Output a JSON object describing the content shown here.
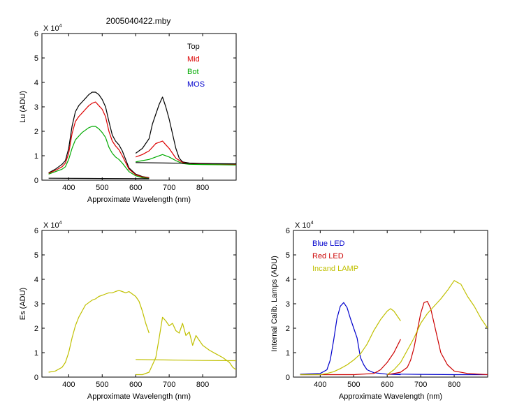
{
  "figure_title": "2005040422.mby",
  "colors": {
    "top": "#000000",
    "mid": "#dd0000",
    "bot": "#00aa00",
    "mos": "#0000cc",
    "blue_led": "#0000cc",
    "red_led": "#cc0000",
    "lamp": "#c0c000"
  },
  "chart_data": [
    {
      "type": "line",
      "panel": "lu",
      "title": "",
      "xlabel": "Approximate Wavelength (nm)",
      "ylabel": "Lu (ADU)",
      "y_multiplier": "X 10",
      "y_exponent": "4",
      "xlim": [
        320,
        900
      ],
      "ylim": [
        0,
        6
      ],
      "xticks": [
        400,
        500,
        600,
        700,
        800
      ],
      "xtick_labels": [
        "400",
        "500",
        "600",
        "700",
        "800"
      ],
      "yticks": [
        0,
        1,
        2,
        3,
        4,
        5,
        6
      ],
      "ytick_labels": [
        "0",
        "1",
        "2",
        "3",
        "4",
        "5",
        "6"
      ],
      "legend_position": "top-right",
      "series": [
        {
          "name": "Top",
          "color": "#000000",
          "segments": [
            {
              "x": [
                340,
                360,
                380,
                390,
                400,
                410,
                420,
                430,
                440,
                450,
                460,
                470,
                480,
                490,
                500,
                510,
                520,
                530,
                540,
                550,
                560,
                580,
                600,
                620,
                640
              ],
              "y": [
                0.3,
                0.45,
                0.65,
                0.8,
                1.3,
                2.2,
                2.8,
                3.05,
                3.2,
                3.35,
                3.5,
                3.6,
                3.6,
                3.5,
                3.3,
                3.0,
                2.4,
                1.85,
                1.6,
                1.45,
                1.2,
                0.5,
                0.25,
                0.15,
                0.1
              ]
            },
            {
              "x": [
                600,
                620,
                640,
                650,
                660,
                670,
                680,
                690,
                700,
                710,
                720,
                730,
                740,
                760,
                800,
                850,
                900
              ],
              "y": [
                1.1,
                1.3,
                1.7,
                2.3,
                2.7,
                3.1,
                3.4,
                3.0,
                2.5,
                1.9,
                1.3,
                0.9,
                0.75,
                0.7,
                0.68,
                0.66,
                0.65
              ]
            }
          ]
        },
        {
          "name": "Mid",
          "color": "#dd0000",
          "segments": [
            {
              "x": [
                340,
                360,
                380,
                390,
                400,
                410,
                420,
                430,
                440,
                450,
                460,
                470,
                480,
                490,
                500,
                510,
                520,
                530,
                540,
                550,
                560,
                580,
                600,
                620,
                640
              ],
              "y": [
                0.28,
                0.4,
                0.55,
                0.7,
                1.1,
                1.9,
                2.4,
                2.6,
                2.75,
                2.9,
                3.05,
                3.15,
                3.2,
                3.05,
                2.9,
                2.6,
                2.0,
                1.6,
                1.4,
                1.25,
                1.0,
                0.45,
                0.22,
                0.13,
                0.09
              ]
            },
            {
              "x": [
                600,
                620,
                640,
                650,
                660,
                670,
                680,
                690,
                700,
                710,
                720,
                740,
                760,
                800,
                850,
                900
              ],
              "y": [
                0.95,
                1.05,
                1.2,
                1.35,
                1.5,
                1.55,
                1.6,
                1.45,
                1.3,
                1.1,
                0.9,
                0.72,
                0.68,
                0.66,
                0.65,
                0.64
              ]
            }
          ]
        },
        {
          "name": "Bot",
          "color": "#00aa00",
          "segments": [
            {
              "x": [
                340,
                360,
                380,
                390,
                400,
                410,
                420,
                430,
                440,
                450,
                460,
                470,
                480,
                490,
                500,
                510,
                520,
                530,
                540,
                550,
                560,
                580,
                600,
                620,
                640
              ],
              "y": [
                0.25,
                0.35,
                0.45,
                0.55,
                0.85,
                1.3,
                1.65,
                1.8,
                1.95,
                2.05,
                2.15,
                2.2,
                2.2,
                2.1,
                1.95,
                1.75,
                1.35,
                1.1,
                0.95,
                0.85,
                0.7,
                0.35,
                0.18,
                0.1,
                0.07
              ]
            },
            {
              "x": [
                600,
                620,
                640,
                660,
                680,
                700,
                720,
                740,
                760,
                800,
                850,
                900
              ],
              "y": [
                0.75,
                0.8,
                0.85,
                0.95,
                1.05,
                0.95,
                0.8,
                0.68,
                0.65,
                0.64,
                0.63,
                0.62
              ]
            }
          ]
        },
        {
          "name": "MOS",
          "color": "#0000cc",
          "segments": []
        },
        {
          "name": "",
          "color": "#000000",
          "segments": [
            {
              "x": [
                340,
                500,
                640
              ],
              "y": [
                0.08,
                0.07,
                0.06
              ]
            },
            {
              "x": [
                600,
                700,
                800,
                900
              ],
              "y": [
                0.72,
                0.7,
                0.68,
                0.67
              ]
            }
          ]
        }
      ]
    },
    {
      "type": "line",
      "panel": "es",
      "title": "",
      "xlabel": "Approximate Wavelength (nm)",
      "ylabel": "Es (ADU)",
      "y_multiplier": "X 10",
      "y_exponent": "4",
      "xlim": [
        320,
        900
      ],
      "ylim": [
        0,
        6
      ],
      "xticks": [
        400,
        500,
        600,
        700,
        800
      ],
      "xtick_labels": [
        "400",
        "500",
        "600",
        "700",
        "800"
      ],
      "yticks": [
        0,
        1,
        2,
        3,
        4,
        5,
        6
      ],
      "ytick_labels": [
        "0",
        "1",
        "2",
        "3",
        "4",
        "5",
        "6"
      ],
      "series": [
        {
          "name": "",
          "color": "#c0c000",
          "segments": [
            {
              "x": [
                340,
                360,
                380,
                390,
                400,
                410,
                420,
                430,
                440,
                450,
                460,
                470,
                480,
                490,
                500,
                510,
                520,
                530,
                540,
                550,
                560,
                570,
                580,
                590,
                600,
                610,
                620,
                630,
                640
              ],
              "y": [
                0.2,
                0.25,
                0.4,
                0.6,
                1.0,
                1.6,
                2.1,
                2.45,
                2.7,
                2.95,
                3.05,
                3.15,
                3.2,
                3.3,
                3.35,
                3.4,
                3.45,
                3.45,
                3.5,
                3.55,
                3.5,
                3.45,
                3.5,
                3.4,
                3.3,
                3.1,
                2.7,
                2.2,
                1.8
              ]
            },
            {
              "x": [
                600,
                620,
                640,
                660,
                670,
                680,
                690,
                700,
                710,
                720,
                730,
                740,
                750,
                760,
                770,
                780,
                800,
                820,
                840,
                860,
                880,
                890,
                900
              ],
              "y": [
                0.1,
                0.1,
                0.2,
                0.8,
                1.6,
                2.45,
                2.3,
                2.1,
                2.2,
                1.9,
                1.8,
                2.2,
                1.7,
                1.85,
                1.3,
                1.7,
                1.3,
                1.1,
                0.95,
                0.8,
                0.6,
                0.4,
                0.3
              ]
            },
            {
              "x": [
                600,
                700,
                800,
                900
              ],
              "y": [
                0.72,
                0.7,
                0.68,
                0.67
              ]
            }
          ]
        }
      ]
    },
    {
      "type": "line",
      "panel": "calib",
      "title": "",
      "xlabel": "Approximate Wavelength (nm)",
      "ylabel": "Internal Calib. Lamps (ADU)",
      "y_multiplier": "X 10",
      "y_exponent": "4",
      "xlim": [
        320,
        900
      ],
      "ylim": [
        0,
        6
      ],
      "xticks": [
        400,
        500,
        600,
        700,
        800
      ],
      "xtick_labels": [
        "400",
        "500",
        "600",
        "700",
        "800"
      ],
      "yticks": [
        0,
        1,
        2,
        3,
        4,
        5,
        6
      ],
      "ytick_labels": [
        "0",
        "1",
        "2",
        "3",
        "4",
        "5",
        "6"
      ],
      "legend_position": "top-left",
      "series": [
        {
          "name": "Blue LED",
          "color": "#0000cc",
          "segments": [
            {
              "x": [
                340,
                400,
                420,
                430,
                440,
                450,
                460,
                470,
                480,
                490,
                500,
                510,
                520,
                530,
                540,
                560,
                600,
                640
              ],
              "y": [
                0.12,
                0.15,
                0.3,
                0.7,
                1.5,
                2.4,
                2.9,
                3.05,
                2.85,
                2.4,
                2.0,
                1.6,
                0.8,
                0.5,
                0.3,
                0.18,
                0.12,
                0.1
              ]
            },
            {
              "x": [
                600,
                650,
                700,
                800,
                900
              ],
              "y": [
                0.12,
                0.12,
                0.11,
                0.1,
                0.1
              ]
            }
          ]
        },
        {
          "name": "Red LED",
          "color": "#cc0000",
          "segments": [
            {
              "x": [
                340,
                500,
                560,
                580,
                600,
                620,
                640
              ],
              "y": [
                0.1,
                0.1,
                0.15,
                0.3,
                0.6,
                1.0,
                1.55
              ]
            },
            {
              "x": [
                600,
                620,
                640,
                660,
                670,
                680,
                690,
                700,
                710,
                720,
                730,
                740,
                750,
                760,
                780,
                800,
                840,
                900
              ],
              "y": [
                0.1,
                0.15,
                0.2,
                0.4,
                0.7,
                1.2,
                1.9,
                2.6,
                3.05,
                3.1,
                2.8,
                2.2,
                1.6,
                1.0,
                0.5,
                0.25,
                0.15,
                0.1
              ]
            }
          ]
        },
        {
          "name": "Incand LAMP",
          "color": "#c0c000",
          "segments": [
            {
              "x": [
                340,
                400,
                420,
                440,
                460,
                480,
                500,
                520,
                540,
                560,
                580,
                600,
                610,
                620,
                630,
                640
              ],
              "y": [
                0.1,
                0.1,
                0.15,
                0.22,
                0.35,
                0.5,
                0.7,
                0.95,
                1.35,
                1.9,
                2.35,
                2.7,
                2.8,
                2.7,
                2.5,
                2.3
              ]
            },
            {
              "x": [
                600,
                620,
                640,
                660,
                680,
                700,
                720,
                740,
                760,
                780,
                800,
                820,
                840,
                860,
                880,
                900
              ],
              "y": [
                0.1,
                0.3,
                0.6,
                1.1,
                1.6,
                2.2,
                2.6,
                2.9,
                3.2,
                3.55,
                3.95,
                3.8,
                3.3,
                2.9,
                2.4,
                2.0
              ]
            }
          ]
        }
      ]
    }
  ]
}
